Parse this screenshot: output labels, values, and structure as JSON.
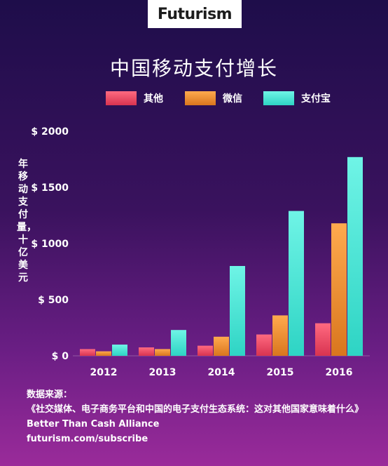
{
  "brand": {
    "logo": "Futurism"
  },
  "footer": {
    "source_label": "数据来源：",
    "source_title": "《社交媒体、电子商务平台和中国的电子支付生态系统：这对其他国家意味着什么》",
    "source_org": "Better Than Cash Alliance",
    "url": "futurism.com/subscribe"
  },
  "colors": {
    "background_top": "#1e0d4a",
    "background_bottom": "#9a2b9a",
    "other": "#e8455f",
    "wechat": "#e98a2e",
    "alipay": "#3fe6d6"
  },
  "chart_data": {
    "type": "bar",
    "title": "中国移动支付增长",
    "ylabel": "年移动支付量，十亿美元",
    "xlabel": "",
    "categories": [
      "2012",
      "2013",
      "2014",
      "2015",
      "2016"
    ],
    "series": [
      {
        "name": "其他",
        "values": [
          60,
          75,
          90,
          190,
          290
        ]
      },
      {
        "name": "微信",
        "values": [
          40,
          60,
          170,
          360,
          1180
        ]
      },
      {
        "name": "支付宝",
        "values": [
          100,
          230,
          800,
          1290,
          1770
        ]
      }
    ],
    "ylim": [
      0,
      2000
    ],
    "yticks": [
      0,
      500,
      1000,
      1500,
      2000
    ],
    "ytick_labels": [
      "$ 0",
      "$ 500",
      "$ 1000",
      "$ 1500",
      "$ 2000"
    ],
    "grid": false,
    "legend": "top"
  }
}
